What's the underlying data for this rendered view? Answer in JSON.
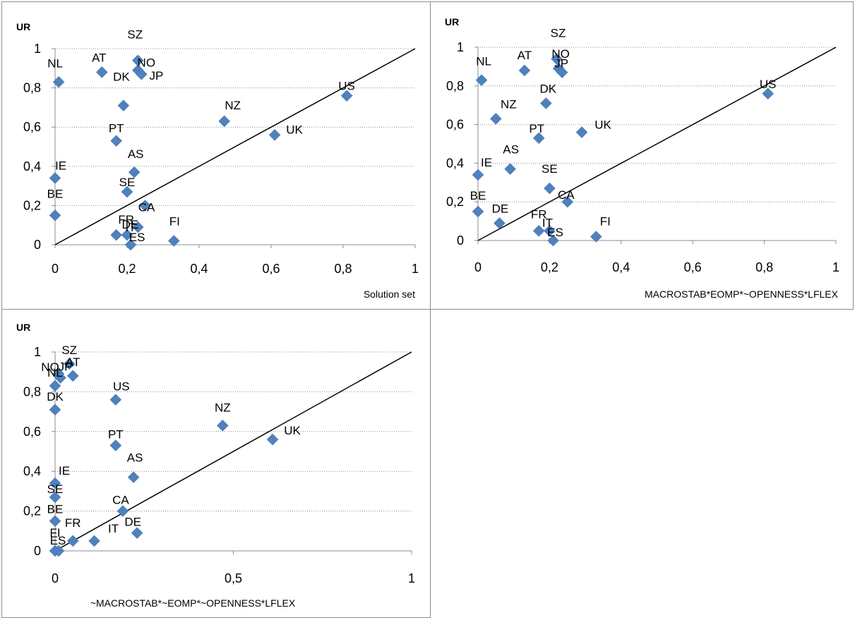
{
  "chart_data": [
    {
      "type": "scatter",
      "ylabel": "UR",
      "xlabel": "Solution set",
      "xlim": [
        0,
        1
      ],
      "ylim": [
        0,
        1
      ],
      "x_ticks": [
        "0",
        "0,2",
        "0,4",
        "0,6",
        "0,8",
        "1"
      ],
      "y_ticks": [
        "0",
        "0,2",
        "0,4",
        "0,6",
        "0,8",
        "1"
      ],
      "grid": "horizontal dotted",
      "diagonal_line": true,
      "marker_color": "#4f81bd",
      "points": [
        {
          "label": "NL",
          "x": 0.01,
          "y": 0.83
        },
        {
          "label": "AT",
          "x": 0.13,
          "y": 0.88
        },
        {
          "label": "SZ",
          "x": 0.23,
          "y": 0.94
        },
        {
          "label": "NO",
          "x": 0.23,
          "y": 0.89
        },
        {
          "label": "JP",
          "x": 0.24,
          "y": 0.87
        },
        {
          "label": "DK",
          "x": 0.19,
          "y": 0.71
        },
        {
          "label": "US",
          "x": 0.81,
          "y": 0.76
        },
        {
          "label": "NZ",
          "x": 0.47,
          "y": 0.63
        },
        {
          "label": "UK",
          "x": 0.61,
          "y": 0.56
        },
        {
          "label": "PT",
          "x": 0.17,
          "y": 0.53
        },
        {
          "label": "AS",
          "x": 0.22,
          "y": 0.37
        },
        {
          "label": "IE",
          "x": 0.0,
          "y": 0.34
        },
        {
          "label": "SE",
          "x": 0.2,
          "y": 0.27
        },
        {
          "label": "CA",
          "x": 0.25,
          "y": 0.2
        },
        {
          "label": "BE",
          "x": 0.0,
          "y": 0.15
        },
        {
          "label": "DE",
          "x": 0.23,
          "y": 0.09
        },
        {
          "label": "FR",
          "x": 0.17,
          "y": 0.05
        },
        {
          "label": "IT",
          "x": 0.2,
          "y": 0.05
        },
        {
          "label": "ES",
          "x": 0.21,
          "y": 0.0
        },
        {
          "label": "FI",
          "x": 0.33,
          "y": 0.02
        }
      ]
    },
    {
      "type": "scatter",
      "ylabel": "UR",
      "xlabel": "MACROSTAB*EOMP*~OPENNESS*LFLEX",
      "xlim": [
        0,
        1
      ],
      "ylim": [
        0,
        1
      ],
      "x_ticks": [
        "0",
        "0,2",
        "0,4",
        "0,6",
        "0,8",
        "1"
      ],
      "y_ticks": [
        "0",
        "0,2",
        "0,4",
        "0,6",
        "0,8",
        "1"
      ],
      "grid": "horizontal dotted",
      "diagonal_line": true,
      "marker_color": "#4f81bd",
      "points": [
        {
          "label": "NL",
          "x": 0.01,
          "y": 0.83
        },
        {
          "label": "AT",
          "x": 0.13,
          "y": 0.88
        },
        {
          "label": "SZ",
          "x": 0.22,
          "y": 0.94
        },
        {
          "label": "NO",
          "x": 0.225,
          "y": 0.89
        },
        {
          "label": "JP",
          "x": 0.235,
          "y": 0.87
        },
        {
          "label": "DK",
          "x": 0.19,
          "y": 0.71
        },
        {
          "label": "US",
          "x": 0.81,
          "y": 0.76
        },
        {
          "label": "NZ",
          "x": 0.05,
          "y": 0.63
        },
        {
          "label": "PT",
          "x": 0.17,
          "y": 0.53
        },
        {
          "label": "UK",
          "x": 0.29,
          "y": 0.56
        },
        {
          "label": "IE",
          "x": 0.0,
          "y": 0.34
        },
        {
          "label": "AS",
          "x": 0.09,
          "y": 0.37
        },
        {
          "label": "SE",
          "x": 0.2,
          "y": 0.27
        },
        {
          "label": "CA",
          "x": 0.25,
          "y": 0.2
        },
        {
          "label": "BE",
          "x": 0.0,
          "y": 0.15
        },
        {
          "label": "DE",
          "x": 0.06,
          "y": 0.09
        },
        {
          "label": "FR",
          "x": 0.17,
          "y": 0.05
        },
        {
          "label": "IT",
          "x": 0.2,
          "y": 0.05
        },
        {
          "label": "ES",
          "x": 0.21,
          "y": 0.0
        },
        {
          "label": "FI",
          "x": 0.33,
          "y": 0.02
        }
      ]
    },
    {
      "type": "scatter",
      "ylabel": "UR",
      "xlabel": "~MACROSTAB*~EOMP*~OPENNESS*LFLEX",
      "xlim": [
        0,
        1
      ],
      "ylim": [
        0,
        1
      ],
      "x_ticks": [
        "0",
        "0,5",
        "1"
      ],
      "y_ticks": [
        "0",
        "0,2",
        "0,4",
        "0,6",
        "0,8",
        "1"
      ],
      "grid": "horizontal dotted",
      "diagonal_line": true,
      "marker_color": "#4f81bd",
      "points": [
        {
          "label": "SZ",
          "x": 0.04,
          "y": 0.94
        },
        {
          "label": "NO",
          "x": 0.01,
          "y": 0.89
        },
        {
          "label": "JP",
          "x": 0.015,
          "y": 0.87
        },
        {
          "label": "AT",
          "x": 0.05,
          "y": 0.88
        },
        {
          "label": "NL",
          "x": 0.0,
          "y": 0.83
        },
        {
          "label": "DK",
          "x": 0.0,
          "y": 0.71
        },
        {
          "label": "US",
          "x": 0.17,
          "y": 0.76
        },
        {
          "label": "NZ",
          "x": 0.47,
          "y": 0.63
        },
        {
          "label": "UK",
          "x": 0.61,
          "y": 0.56
        },
        {
          "label": "PT",
          "x": 0.17,
          "y": 0.53
        },
        {
          "label": "AS",
          "x": 0.22,
          "y": 0.37
        },
        {
          "label": "IE",
          "x": 0.0,
          "y": 0.34
        },
        {
          "label": "SE",
          "x": 0.0,
          "y": 0.27
        },
        {
          "label": "BE",
          "x": 0.0,
          "y": 0.15
        },
        {
          "label": "CA",
          "x": 0.19,
          "y": 0.2
        },
        {
          "label": "DE",
          "x": 0.23,
          "y": 0.09
        },
        {
          "label": "FI",
          "x": 0.0,
          "y": 0.0
        },
        {
          "label": "FR",
          "x": 0.05,
          "y": 0.05
        },
        {
          "label": "ES",
          "x": 0.01,
          "y": 0.0
        },
        {
          "label": "IT",
          "x": 0.11,
          "y": 0.05
        }
      ]
    }
  ]
}
